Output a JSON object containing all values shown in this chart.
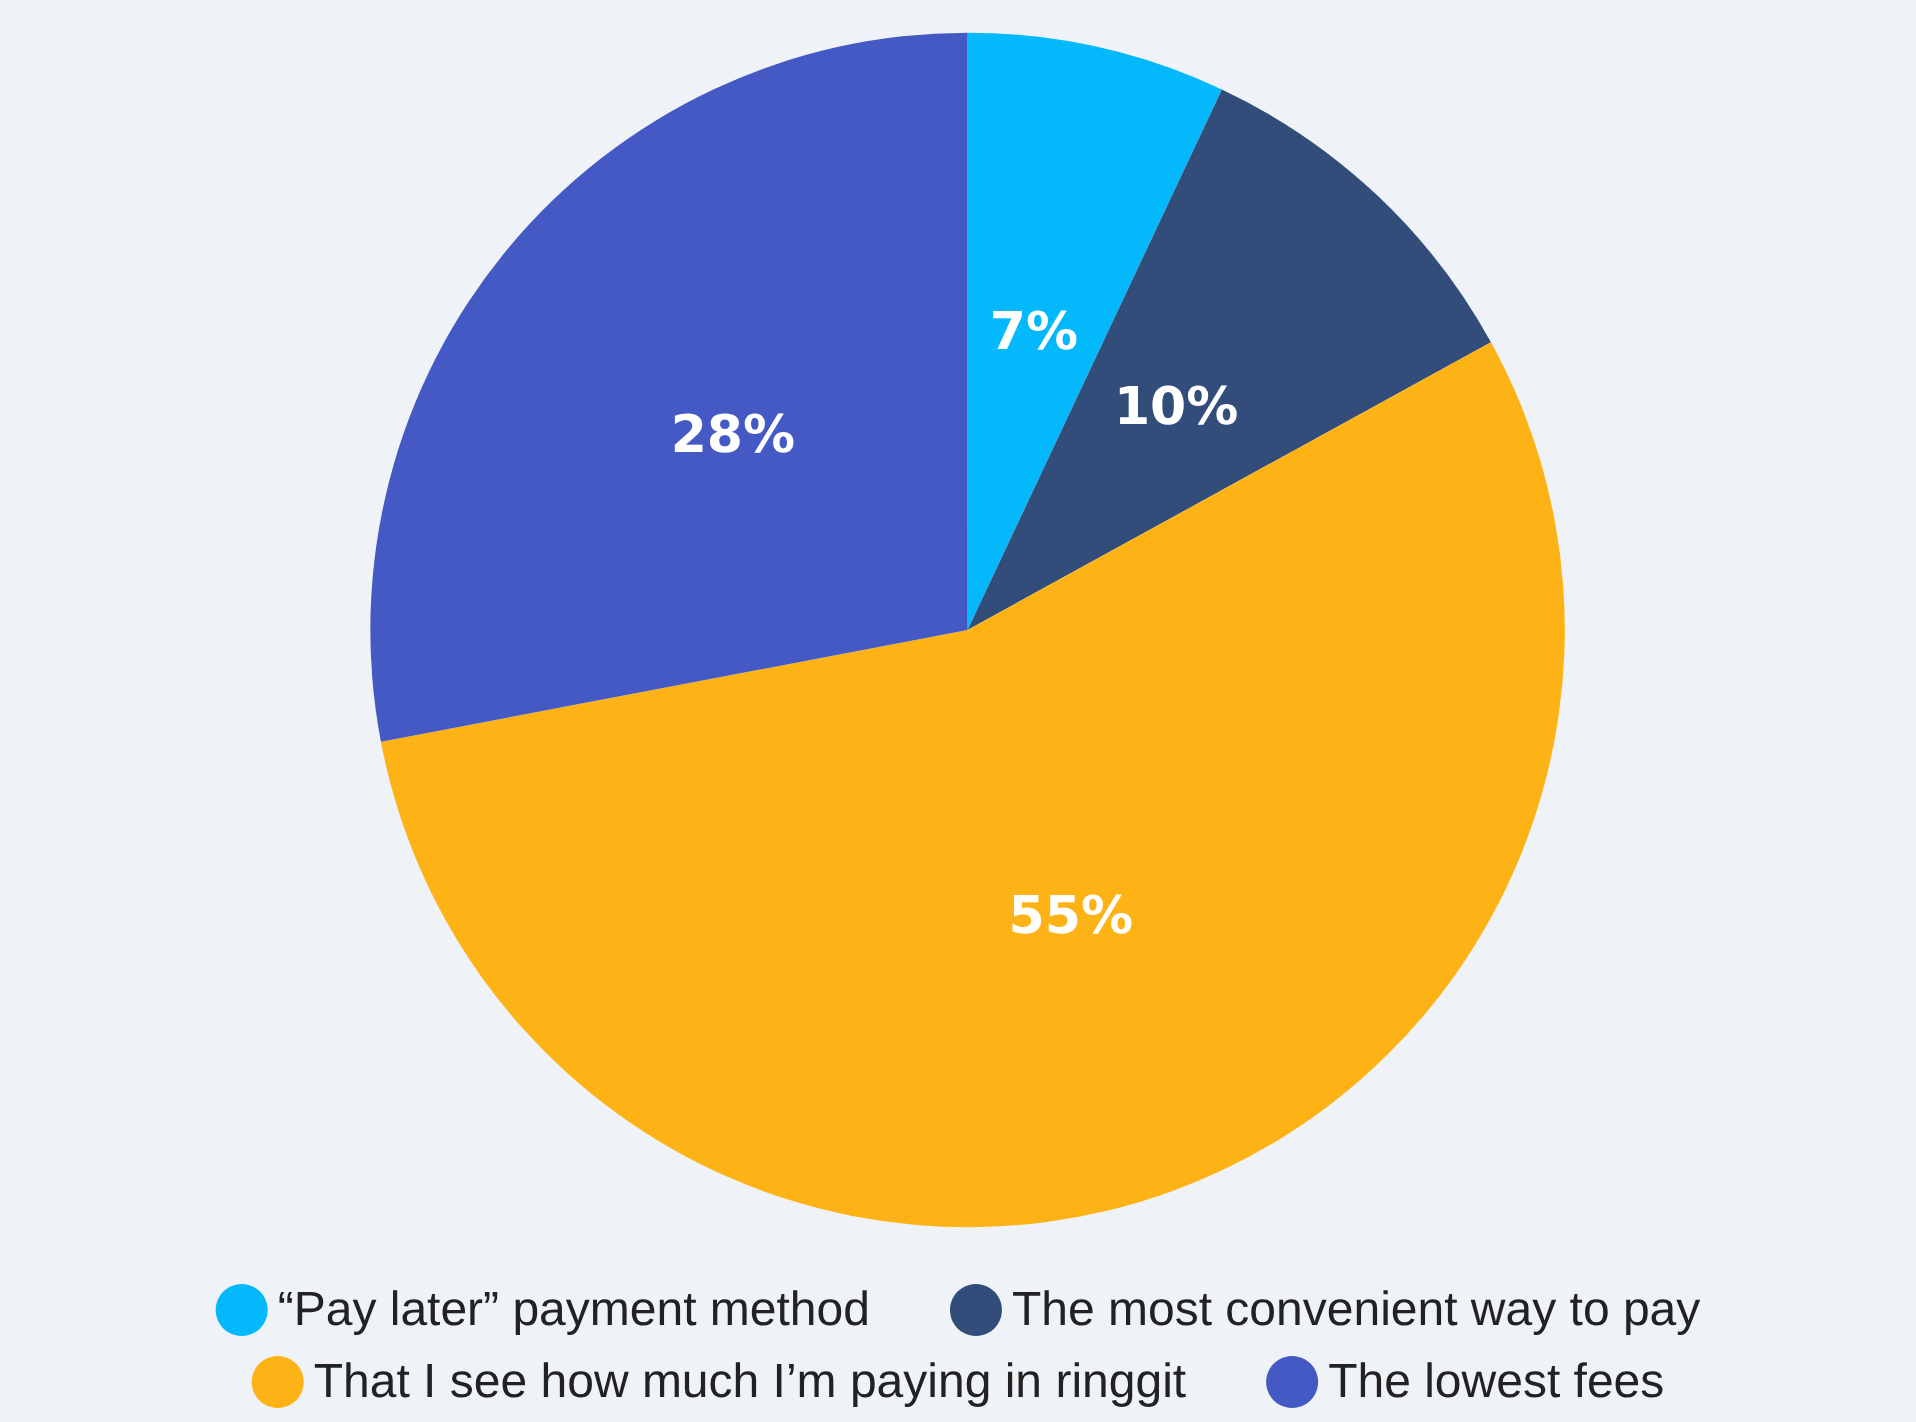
{
  "chart_data": {
    "type": "pie",
    "categories": [
      "“Pay later” payment method",
      "The most convenient way to pay",
      "That I see how much I’m paying in ringgit",
      "The lowest fees"
    ],
    "values": [
      7,
      10,
      55,
      28
    ],
    "colors": [
      "#03b9fb",
      "#334d7b",
      "#fdb316",
      "#4459c4"
    ],
    "value_labels": [
      "7%",
      "10%",
      "55%",
      "28%"
    ],
    "legend": "bottom"
  }
}
